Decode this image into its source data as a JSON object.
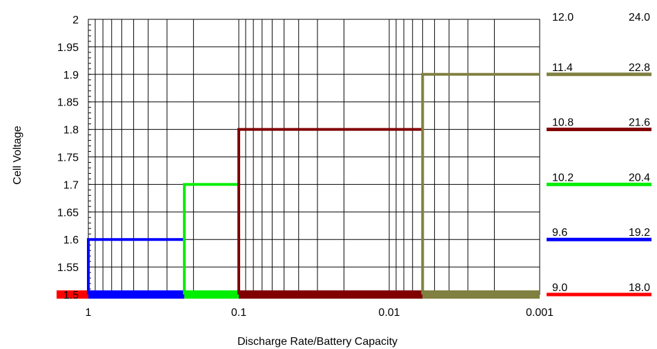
{
  "chart_data": {
    "type": "line",
    "title": "",
    "xlabel": "Discharge Rate/Battery Capacity",
    "ylabel": "Cell Voltage",
    "x_scale": "log",
    "x_reversed": true,
    "xlim": [
      1,
      0.001
    ],
    "ylim": [
      1.5,
      2
    ],
    "grid": true,
    "x_ticks": [
      {
        "value": 1,
        "label": "1"
      },
      {
        "value": 0.1,
        "label": "0.1"
      },
      {
        "value": 0.01,
        "label": "0.01"
      },
      {
        "value": 0.001,
        "label": "0.001"
      }
    ],
    "y_ticks": [
      {
        "value": 2,
        "label": "2"
      },
      {
        "value": 1.95,
        "label": "1.95"
      },
      {
        "value": 1.9,
        "label": "1.9"
      },
      {
        "value": 1.85,
        "label": "1.85"
      },
      {
        "value": 1.8,
        "label": "1.8"
      },
      {
        "value": 1.75,
        "label": "1.75"
      },
      {
        "value": 1.7,
        "label": "1.7"
      },
      {
        "value": 1.65,
        "label": "1.65"
      },
      {
        "value": 1.6,
        "label": "1.6"
      },
      {
        "value": 1.55,
        "label": "1.55"
      },
      {
        "value": 1.5,
        "label": "1.5"
      }
    ],
    "series": [
      {
        "color": "#ff0000",
        "x": [
          1,
          1
        ],
        "y": [
          1.5,
          1.5
        ]
      },
      {
        "color": "#0000ff",
        "x": [
          1,
          1,
          0.23
        ],
        "y": [
          1.5,
          1.6,
          1.6
        ]
      },
      {
        "color": "#00ee00",
        "x": [
          0.23,
          0.23,
          0.1
        ],
        "y": [
          1.5,
          1.7,
          1.7
        ]
      },
      {
        "color": "#800000",
        "x": [
          0.1,
          0.1,
          0.006
        ],
        "y": [
          1.5,
          1.8,
          1.8
        ]
      },
      {
        "color": "#808040",
        "x": [
          0.006,
          0.006,
          0.001
        ],
        "y": [
          1.5,
          1.9,
          1.9
        ]
      }
    ],
    "right_labels": [
      {
        "left": "12.0",
        "right": "24.0",
        "voltage": 2.0,
        "color": null
      },
      {
        "left": "11.4",
        "right": "22.8",
        "voltage": 1.9,
        "color": "#808040"
      },
      {
        "left": "10.8",
        "right": "21.6",
        "voltage": 1.8,
        "color": "#800000"
      },
      {
        "left": "10.2",
        "right": "20.4",
        "voltage": 1.7,
        "color": "#00ee00"
      },
      {
        "left": "9.6",
        "right": "19.2",
        "voltage": 1.6,
        "color": "#0000ff"
      },
      {
        "left": "9.0",
        "right": "18.0",
        "voltage": 1.5,
        "color": "#ff0000"
      }
    ]
  }
}
